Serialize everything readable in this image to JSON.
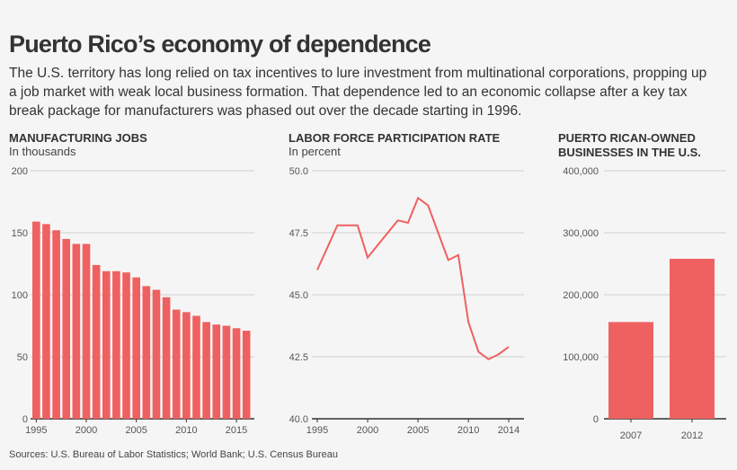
{
  "title": "Puerto Rico’s economy of dependence",
  "subtitle": "The U.S. territory has long relied on tax incentives to lure investment from multinational corporations, propping up a job market with weak local business formation. That dependence led to an economic collapse after a key tax break package for manufacturers was phased out over the decade starting in 1996.",
  "source": "Sources: U.S. Bureau of Labor Statistics; World Bank; U.S. Census Bureau",
  "colors": {
    "bar": "#ee6160",
    "grid": "#d0d0d0",
    "background": "#f5f5f5"
  },
  "chart_data": [
    {
      "type": "bar",
      "title": "MANUFACTURING JOBS",
      "subtitle": "In thousands",
      "categories": [
        1995,
        1996,
        1997,
        1998,
        1999,
        2000,
        2001,
        2002,
        2003,
        2004,
        2005,
        2006,
        2007,
        2008,
        2009,
        2010,
        2011,
        2012,
        2013,
        2014,
        2015,
        2016
      ],
      "values": [
        159,
        157,
        152,
        145,
        141,
        141,
        124,
        119,
        119,
        118,
        114,
        107,
        104,
        98,
        88,
        86,
        83,
        78,
        76,
        75,
        73,
        71
      ],
      "ylim": [
        0,
        200
      ],
      "yticks": [
        "0",
        "50",
        "100",
        "150",
        "200"
      ],
      "xticks": [
        "1995",
        "2000",
        "2005",
        "2010",
        "2015"
      ],
      "grid": true
    },
    {
      "type": "line",
      "title": "LABOR FORCE PARTICIPATION RATE",
      "subtitle": "In percent",
      "x": [
        1995,
        1996,
        1997,
        1998,
        1999,
        2000,
        2001,
        2002,
        2003,
        2004,
        2005,
        2006,
        2007,
        2008,
        2009,
        2010,
        2011,
        2012,
        2013,
        2014
      ],
      "y": [
        46.0,
        46.9,
        47.8,
        47.8,
        47.8,
        46.5,
        47.0,
        47.5,
        48.0,
        47.9,
        48.9,
        48.6,
        47.5,
        46.4,
        46.6,
        43.9,
        42.7,
        42.4,
        42.6,
        42.9
      ],
      "ylim": [
        40,
        50
      ],
      "yticks": [
        "40.0",
        "42.5",
        "45.0",
        "47.5",
        "50.0"
      ],
      "xticks": [
        "1995",
        "2000",
        "2005",
        "2010",
        "2014"
      ],
      "grid": true
    },
    {
      "type": "bar",
      "title": "PUERTO RICAN-OWNED BUSINESSES IN THE U.S.",
      "categories": [
        "2007",
        "2012"
      ],
      "values": [
        156000,
        258000
      ],
      "ylim": [
        0,
        400000
      ],
      "yticks": [
        "0",
        "100,000",
        "200,000",
        "300,000",
        "400,000"
      ],
      "grid": true
    }
  ]
}
